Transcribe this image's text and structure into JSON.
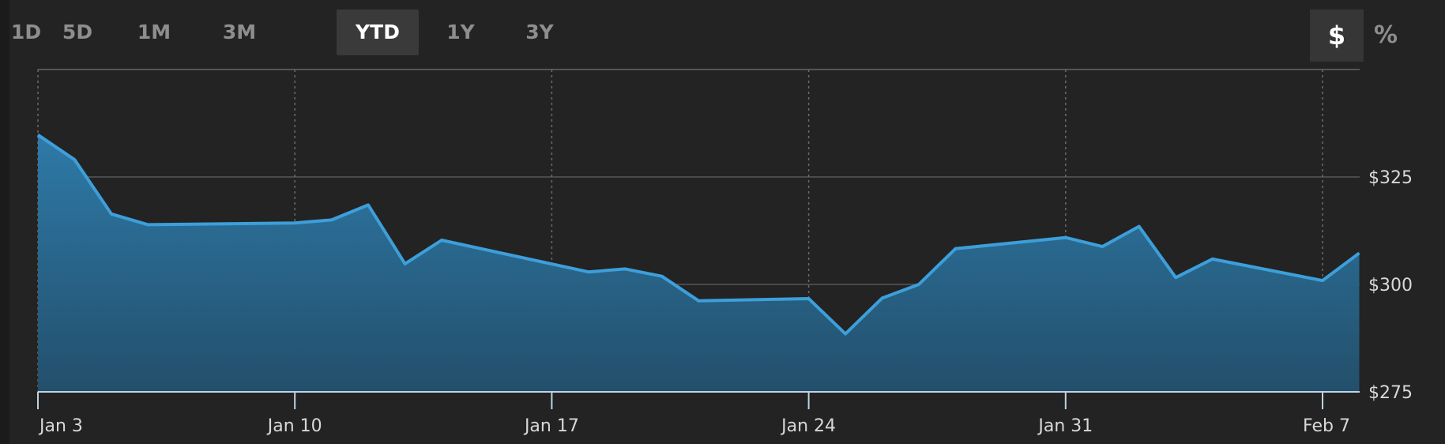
{
  "range_tabs": [
    {
      "label": "1D",
      "active": false
    },
    {
      "label": "5D",
      "active": false
    },
    {
      "label": "1M",
      "active": false
    },
    {
      "label": "3M",
      "active": false
    },
    {
      "label": "YTD",
      "active": true
    },
    {
      "label": "1Y",
      "active": false
    },
    {
      "label": "3Y",
      "active": false
    }
  ],
  "unit_toggle": {
    "dollar_label": "$",
    "percent_label": "%",
    "active": "dollar"
  },
  "colors": {
    "line": "#3d9fda",
    "fill_top": "#2e7aa8",
    "fill_bottom": "#234f6b",
    "grid": "#4a4a4a",
    "axis": "#bfd3e0"
  },
  "chart_data": {
    "type": "area",
    "title": "",
    "xlabel": "",
    "ylabel": "",
    "x_ticks": [
      "Jan 3",
      "Jan 10",
      "Jan 17",
      "Jan 24",
      "Jan 31",
      "Feb 7"
    ],
    "y_ticks": [
      "$275",
      "$300",
      "$325"
    ],
    "y_tick_values": [
      275,
      300,
      325
    ],
    "ylim": [
      275,
      350
    ],
    "y_axis_side": "right",
    "grid": true,
    "series": [
      {
        "points": [
          [
            "2022-01-03",
            334.8
          ],
          [
            "2022-01-04",
            329.0
          ],
          [
            "2022-01-05",
            316.4
          ],
          [
            "2022-01-06",
            313.9
          ],
          [
            "2022-01-10",
            314.3
          ],
          [
            "2022-01-11",
            315.0
          ],
          [
            "2022-01-12",
            318.5
          ],
          [
            "2022-01-13",
            304.8
          ],
          [
            "2022-01-14",
            310.3
          ],
          [
            "2022-01-18",
            302.9
          ],
          [
            "2022-01-19",
            303.6
          ],
          [
            "2022-01-20",
            301.9
          ],
          [
            "2022-01-21",
            296.2
          ],
          [
            "2022-01-24",
            296.7
          ],
          [
            "2022-01-25",
            288.5
          ],
          [
            "2022-01-26",
            296.8
          ],
          [
            "2022-01-27",
            300.0
          ],
          [
            "2022-01-28",
            308.3
          ],
          [
            "2022-01-31",
            310.9
          ],
          [
            "2022-02-01",
            308.8
          ],
          [
            "2022-02-02",
            313.5
          ],
          [
            "2022-02-03",
            301.6
          ],
          [
            "2022-02-04",
            305.9
          ],
          [
            "2022-02-07",
            300.9
          ],
          [
            "2022-02-08",
            307.3
          ]
        ]
      }
    ]
  }
}
